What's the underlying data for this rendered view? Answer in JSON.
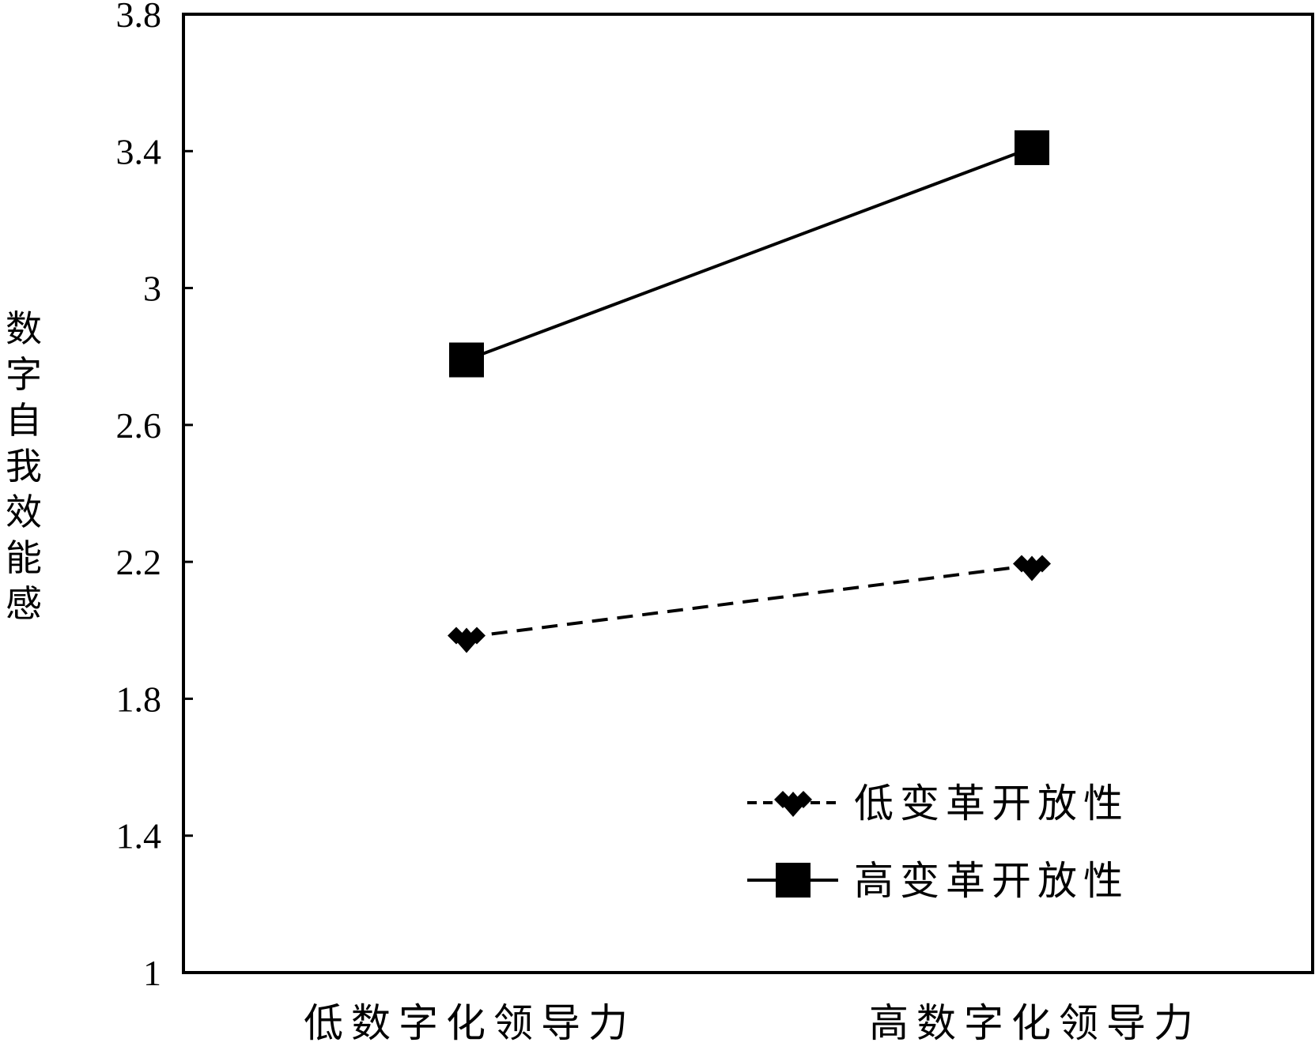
{
  "chart_data": {
    "type": "line",
    "title": "",
    "xlabel": "",
    "ylabel": "数字自我效能感",
    "categories": [
      "低数字化领导力",
      "高数字化领导力"
    ],
    "ylim": [
      1,
      3.8
    ],
    "yticks": [
      "1",
      "1.4",
      "1.8",
      "2.2",
      "2.6",
      "3",
      "3.4",
      "3.8"
    ],
    "grid": false,
    "legend_position": "bottom-right",
    "series": [
      {
        "name": "低变革开放性",
        "values": [
          1.98,
          2.19
        ],
        "line_style": "dashed",
        "marker": "diamond-cluster",
        "color": "#000000"
      },
      {
        "name": "高变革开放性",
        "values": [
          2.79,
          3.41
        ],
        "line_style": "solid",
        "marker": "square",
        "color": "#000000"
      }
    ]
  }
}
